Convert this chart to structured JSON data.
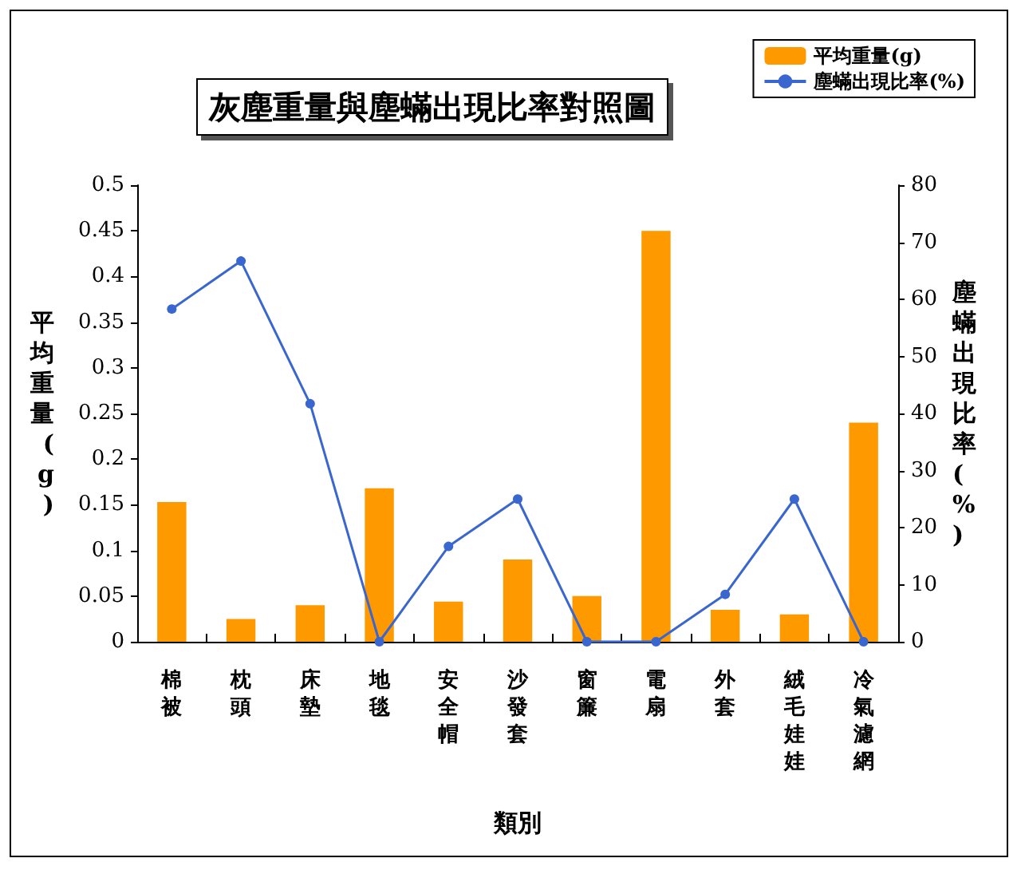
{
  "chart_data": {
    "type": "bar",
    "title": "灰塵重量與塵蟎出現比率對照圖",
    "xlabel": "類別",
    "ylabel": "平均重量(g)",
    "y2label": "塵蟎出現比率(%)",
    "categories": [
      "棉被",
      "枕頭",
      "床墊",
      "地毯",
      "安全帽",
      "沙發套",
      "窗簾",
      "電扇",
      "外套",
      "絨毛娃娃",
      "冷氣濾網"
    ],
    "series": [
      {
        "name": "平均重量(g)",
        "color": "#ff9900",
        "values": [
          0.153,
          0.025,
          0.04,
          0.168,
          0.044,
          0.09,
          0.05,
          0.45,
          0.035,
          0.03,
          0.24
        ]
      },
      {
        "name": "塵蟎出現比率(%)",
        "type": "line",
        "axis": "y2",
        "color": "#3a66d0",
        "values": [
          58.3,
          66.7,
          41.7,
          0,
          16.7,
          25,
          0,
          0,
          8.3,
          25,
          0
        ]
      }
    ],
    "ylim": [
      0,
      0.5
    ],
    "yticks": [
      0,
      0.05,
      0.1,
      0.15,
      0.2,
      0.25,
      0.3,
      0.35,
      0.4,
      0.45,
      0.5
    ],
    "y2lim": [
      0,
      80
    ],
    "y2ticks": [
      0,
      10,
      20,
      30,
      40,
      50,
      60,
      70,
      80
    ],
    "grid": false,
    "legend": "top right",
    "marker": "circle",
    "line_style": "solid"
  }
}
